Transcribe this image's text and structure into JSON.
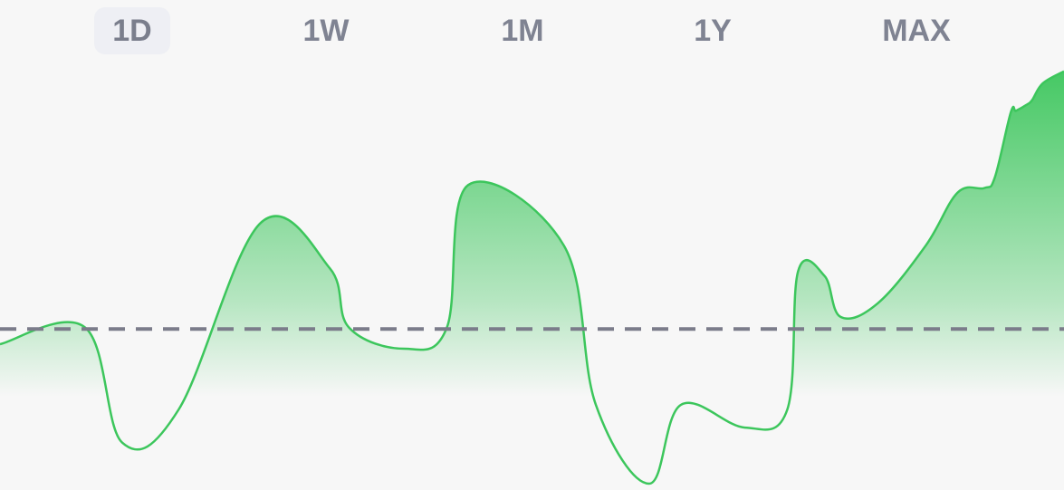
{
  "range_tabs": [
    {
      "label": "1D",
      "active": true
    },
    {
      "label": "1W",
      "active": false
    },
    {
      "label": "1M",
      "active": false
    },
    {
      "label": "1Y",
      "active": false
    },
    {
      "label": "MAX",
      "active": false
    }
  ],
  "colors": {
    "line": "#3cc65c",
    "area_top": "#3cc65c",
    "baseline": "#7b7c8a",
    "tab_text": "#7f8392",
    "tab_active_bg": "#eeeff4"
  },
  "chart_data": {
    "type": "area",
    "x": [
      0,
      0.08,
      0.115,
      0.168,
      0.245,
      0.31,
      0.328,
      0.38,
      0.42,
      0.44,
      0.53,
      0.56,
      0.61,
      0.64,
      0.7,
      0.74,
      0.75,
      0.775,
      0.79,
      0.825,
      0.87,
      0.9,
      0.925,
      0.935,
      0.95,
      0.955,
      0.965,
      0.97,
      0.98,
      1.0
    ],
    "values": [
      -0.1,
      0.01,
      -0.75,
      -0.53,
      0.7,
      0.4,
      0.01,
      -0.13,
      0.01,
      0.95,
      0.55,
      -0.5,
      -1.02,
      -0.5,
      -0.65,
      -0.53,
      0.38,
      0.35,
      0.08,
      0.17,
      0.55,
      0.9,
      0.93,
      1.0,
      1.43,
      1.44,
      1.48,
      1.51,
      1.62,
      1.7
    ],
    "baseline": 0,
    "ylim": [
      -1.05,
      1.8
    ],
    "grid": false
  }
}
